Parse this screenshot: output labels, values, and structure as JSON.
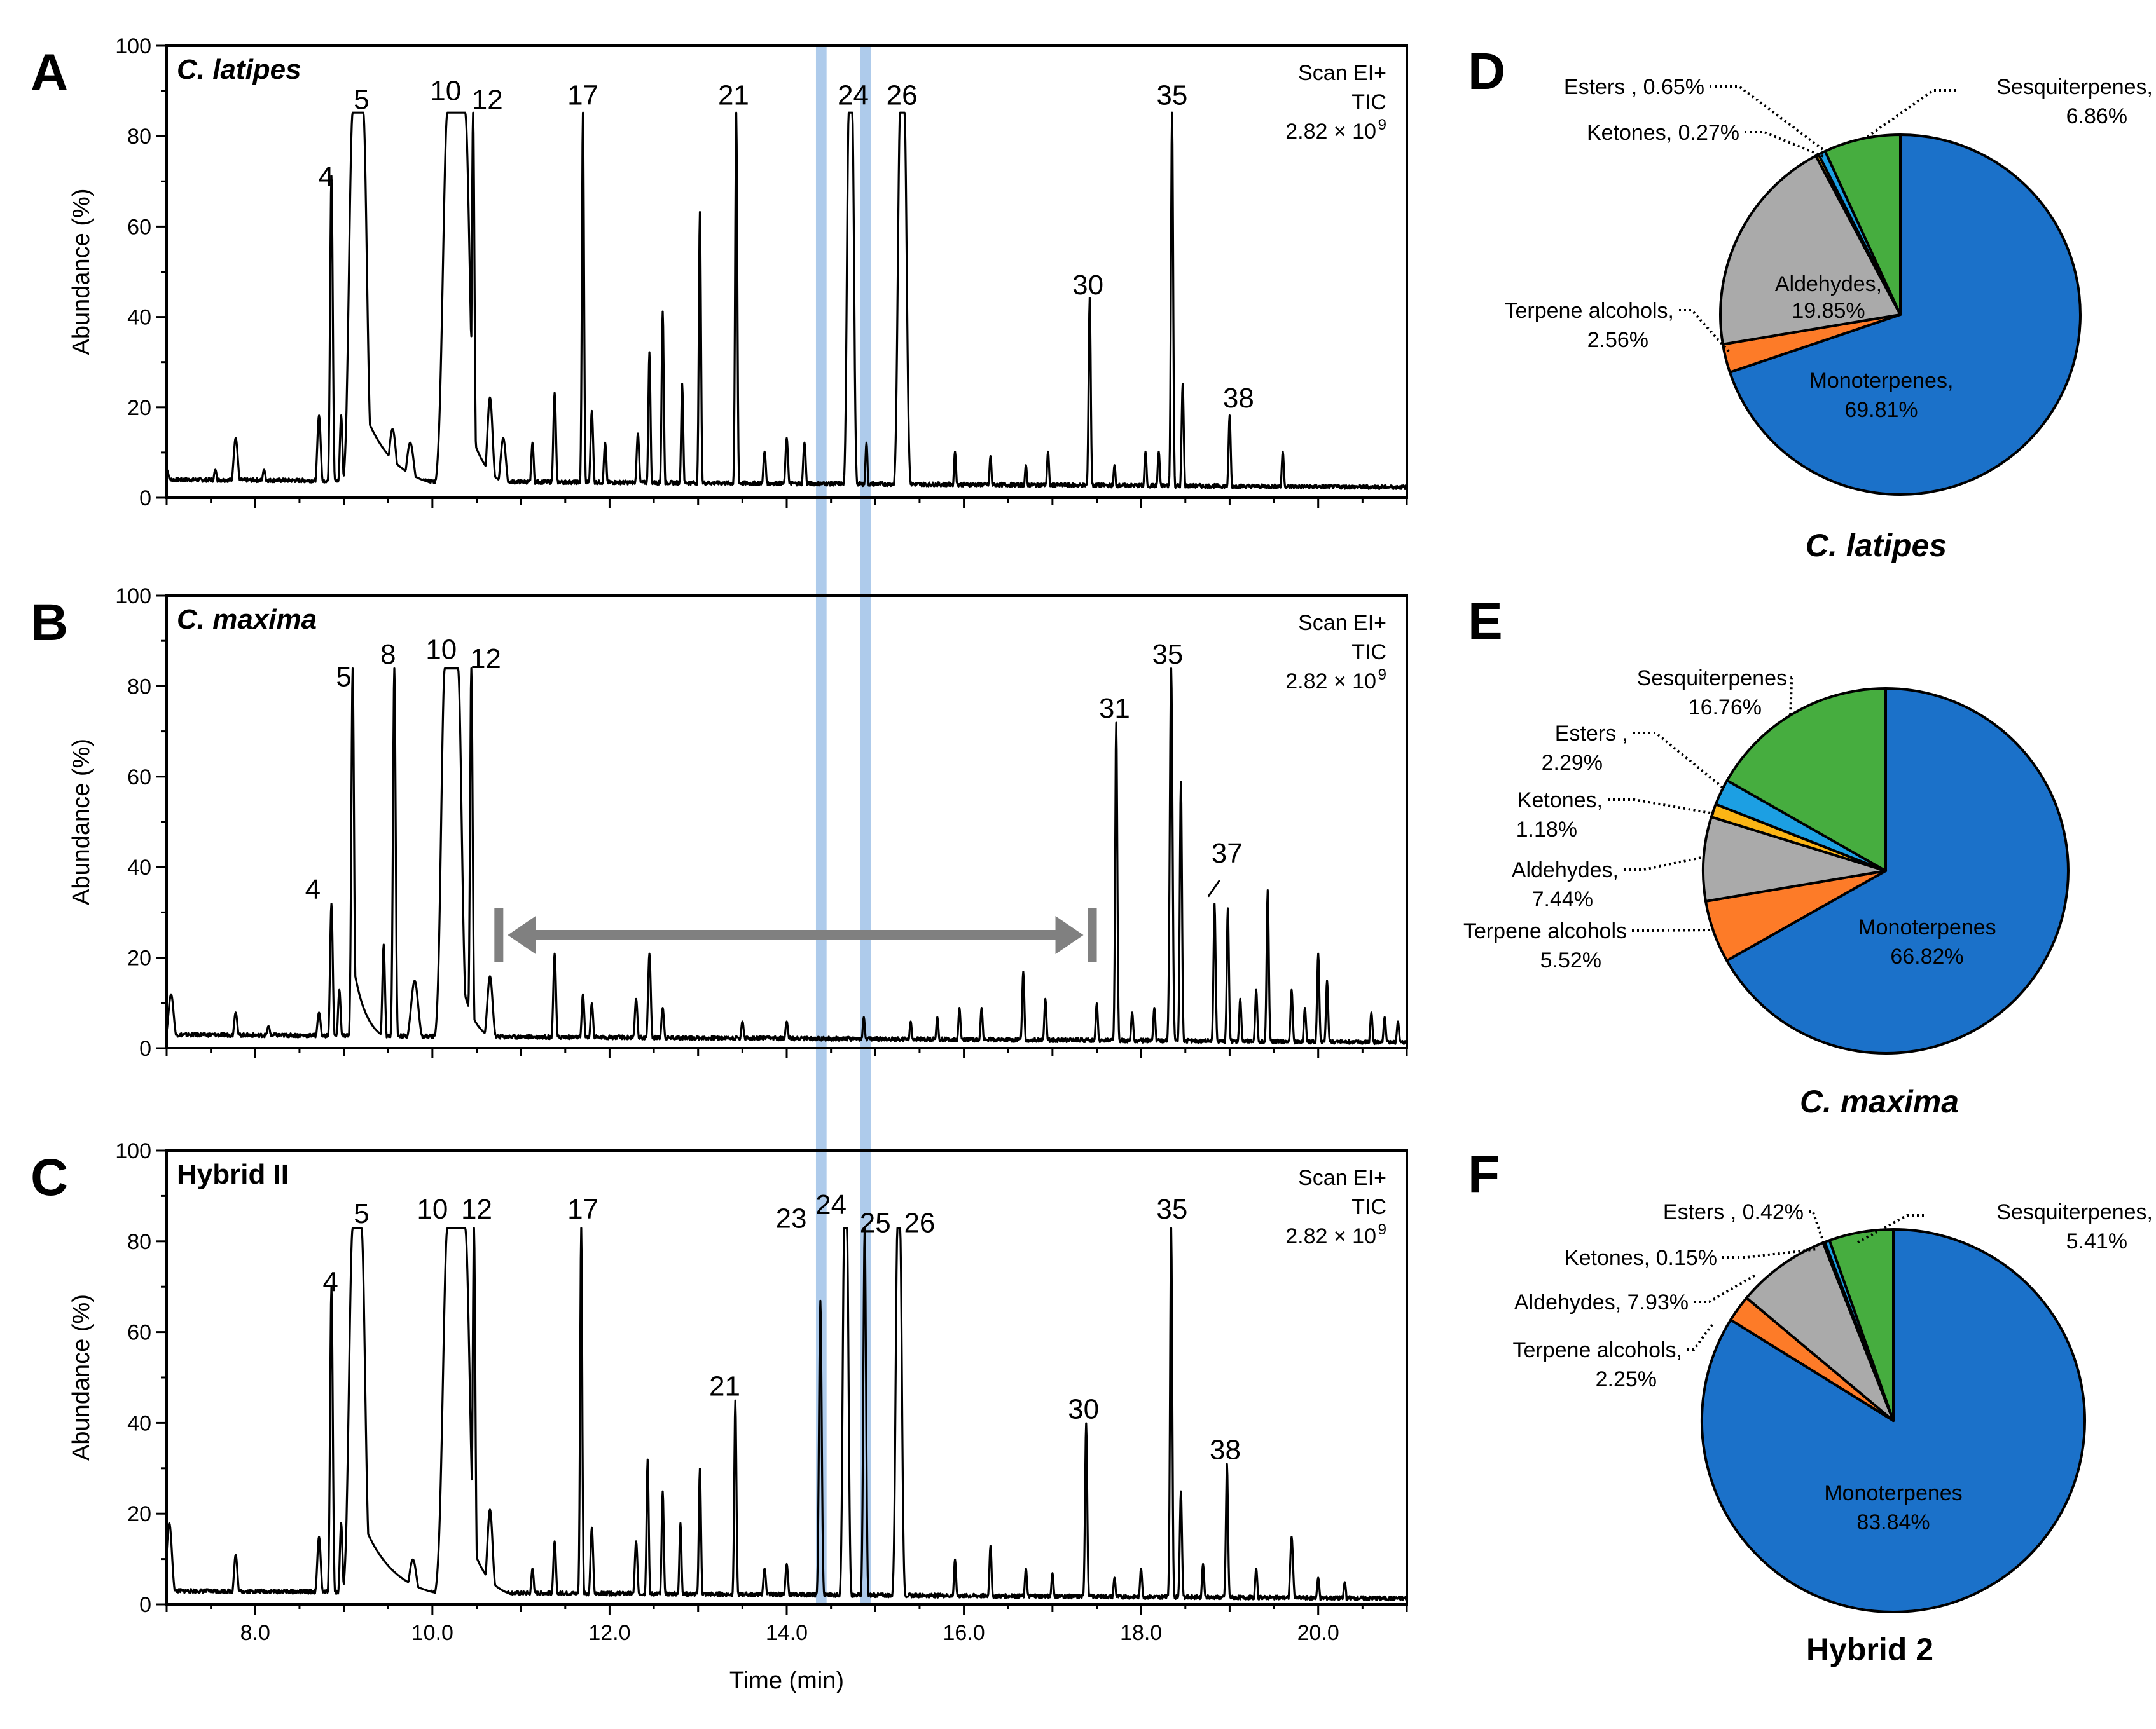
{
  "chart_data": [
    {
      "type": "line",
      "panel": "A",
      "sample": "C. latipes",
      "sample_italic": true,
      "info": [
        "Scan EI+",
        "TIC",
        "2.82 × 10",
        "9"
      ],
      "xlabel": "",
      "ylabel": "Abundance (%)",
      "xlim": [
        7,
        21
      ],
      "ylim": [
        0,
        100
      ],
      "yticks": [
        "0",
        "20",
        "40",
        "60",
        "80",
        "100"
      ],
      "xticks": [],
      "baseline": 4,
      "peaks": [
        {
          "x": 7.0,
          "y": 5,
          "w": 0.03
        },
        {
          "x": 7.55,
          "y": 5,
          "w": 0.02
        },
        {
          "x": 7.78,
          "y": 12,
          "w": 0.025
        },
        {
          "x": 8.1,
          "y": 5,
          "w": 0.02
        },
        {
          "x": 8.72,
          "y": 17,
          "w": 0.02
        },
        {
          "x": 8.86,
          "y": 70,
          "w": 0.015
        },
        {
          "x": 8.97,
          "y": 17,
          "w": 0.015
        },
        {
          "x": 9.1,
          "y": 84,
          "w": 0.04,
          "flat": 0.12,
          "tail": 0.35
        },
        {
          "x": 9.55,
          "y": 14,
          "w": 0.04
        },
        {
          "x": 9.75,
          "y": 11,
          "w": 0.04
        },
        {
          "x": 10.17,
          "y": 84,
          "w": 0.05,
          "flat": 0.2,
          "tail": 0.2
        },
        {
          "x": 10.46,
          "y": 84,
          "w": 0.015
        },
        {
          "x": 10.65,
          "y": 21,
          "w": 0.03
        },
        {
          "x": 10.8,
          "y": 12,
          "w": 0.03
        },
        {
          "x": 11.13,
          "y": 11,
          "w": 0.015
        },
        {
          "x": 11.38,
          "y": 22,
          "w": 0.015
        },
        {
          "x": 11.7,
          "y": 84,
          "w": 0.012
        },
        {
          "x": 11.8,
          "y": 18,
          "w": 0.015
        },
        {
          "x": 11.95,
          "y": 11,
          "w": 0.015
        },
        {
          "x": 12.32,
          "y": 13,
          "w": 0.015
        },
        {
          "x": 12.45,
          "y": 31,
          "w": 0.012
        },
        {
          "x": 12.6,
          "y": 40,
          "w": 0.012
        },
        {
          "x": 12.82,
          "y": 24,
          "w": 0.012
        },
        {
          "x": 13.02,
          "y": 62,
          "w": 0.012
        },
        {
          "x": 13.43,
          "y": 84,
          "w": 0.012
        },
        {
          "x": 13.75,
          "y": 9,
          "w": 0.015
        },
        {
          "x": 14.0,
          "y": 12,
          "w": 0.015
        },
        {
          "x": 14.2,
          "y": 11,
          "w": 0.015
        },
        {
          "x": 14.7,
          "y": 84,
          "w": 0.02,
          "flat": 0.04
        },
        {
          "x": 14.9,
          "y": 11,
          "w": 0.012
        },
        {
          "x": 15.28,
          "y": 84,
          "w": 0.025,
          "flat": 0.05
        },
        {
          "x": 15.9,
          "y": 9,
          "w": 0.012
        },
        {
          "x": 16.3,
          "y": 8,
          "w": 0.012
        },
        {
          "x": 16.7,
          "y": 6,
          "w": 0.012
        },
        {
          "x": 16.95,
          "y": 9,
          "w": 0.012
        },
        {
          "x": 17.42,
          "y": 43,
          "w": 0.012
        },
        {
          "x": 17.7,
          "y": 6,
          "w": 0.012
        },
        {
          "x": 18.05,
          "y": 9,
          "w": 0.012
        },
        {
          "x": 18.2,
          "y": 9,
          "w": 0.012
        },
        {
          "x": 18.35,
          "y": 84,
          "w": 0.012
        },
        {
          "x": 18.47,
          "y": 24,
          "w": 0.012
        },
        {
          "x": 19.0,
          "y": 17,
          "w": 0.012
        },
        {
          "x": 19.6,
          "y": 9,
          "w": 0.012
        }
      ],
      "labels": [
        {
          "text": "4",
          "x": 8.8,
          "y": 69
        },
        {
          "text": "5",
          "x": 9.2,
          "y": 86
        },
        {
          "text": "10",
          "x": 10.15,
          "y": 88
        },
        {
          "text": "12",
          "x": 10.62,
          "y": 86
        },
        {
          "text": "17",
          "x": 11.7,
          "y": 87
        },
        {
          "text": "21",
          "x": 13.4,
          "y": 87
        },
        {
          "text": "24",
          "x": 14.75,
          "y": 87
        },
        {
          "text": "26",
          "x": 15.3,
          "y": 87
        },
        {
          "text": "30",
          "x": 17.4,
          "y": 45
        },
        {
          "text": "35",
          "x": 18.35,
          "y": 87
        },
        {
          "text": "38",
          "x": 19.1,
          "y": 20
        }
      ]
    },
    {
      "type": "line",
      "panel": "B",
      "sample": "C. maxima",
      "sample_italic": true,
      "info": [
        "Scan EI+",
        "TIC",
        "2.82 × 10",
        "9"
      ],
      "xlabel": "",
      "ylabel": "Abundance (%)",
      "xlim": [
        7,
        21
      ],
      "ylim": [
        0,
        100
      ],
      "yticks": [
        "0",
        "20",
        "40",
        "60",
        "80",
        "100"
      ],
      "xticks": [],
      "baseline": 3,
      "peaks": [
        {
          "x": 7.05,
          "y": 11,
          "w": 0.03
        },
        {
          "x": 7.78,
          "y": 7,
          "w": 0.02
        },
        {
          "x": 8.15,
          "y": 4,
          "w": 0.02
        },
        {
          "x": 8.72,
          "y": 7,
          "w": 0.02
        },
        {
          "x": 8.86,
          "y": 31,
          "w": 0.015
        },
        {
          "x": 8.95,
          "y": 12,
          "w": 0.015
        },
        {
          "x": 9.1,
          "y": 83,
          "w": 0.015,
          "tail": 0.15
        },
        {
          "x": 9.45,
          "y": 22,
          "w": 0.015
        },
        {
          "x": 9.57,
          "y": 83,
          "w": 0.015
        },
        {
          "x": 9.8,
          "y": 14,
          "w": 0.04
        },
        {
          "x": 10.14,
          "y": 83,
          "w": 0.04,
          "flat": 0.15,
          "tail": 0.15
        },
        {
          "x": 10.44,
          "y": 83,
          "w": 0.015
        },
        {
          "x": 10.65,
          "y": 15,
          "w": 0.03
        },
        {
          "x": 11.38,
          "y": 20,
          "w": 0.015
        },
        {
          "x": 11.7,
          "y": 11,
          "w": 0.015
        },
        {
          "x": 11.8,
          "y": 9,
          "w": 0.015
        },
        {
          "x": 12.3,
          "y": 10,
          "w": 0.015
        },
        {
          "x": 12.45,
          "y": 20,
          "w": 0.015
        },
        {
          "x": 12.6,
          "y": 8,
          "w": 0.015
        },
        {
          "x": 13.5,
          "y": 5,
          "w": 0.015
        },
        {
          "x": 14.0,
          "y": 5,
          "w": 0.015
        },
        {
          "x": 14.87,
          "y": 6,
          "w": 0.012
        },
        {
          "x": 15.4,
          "y": 5,
          "w": 0.012
        },
        {
          "x": 15.7,
          "y": 6,
          "w": 0.012
        },
        {
          "x": 15.95,
          "y": 8,
          "w": 0.012
        },
        {
          "x": 16.2,
          "y": 8,
          "w": 0.012
        },
        {
          "x": 16.67,
          "y": 16,
          "w": 0.012
        },
        {
          "x": 16.92,
          "y": 10,
          "w": 0.012
        },
        {
          "x": 17.5,
          "y": 9,
          "w": 0.012
        },
        {
          "x": 17.72,
          "y": 71,
          "w": 0.012
        },
        {
          "x": 17.9,
          "y": 7,
          "w": 0.012
        },
        {
          "x": 18.15,
          "y": 8,
          "w": 0.012
        },
        {
          "x": 18.34,
          "y": 83,
          "w": 0.015
        },
        {
          "x": 18.45,
          "y": 58,
          "w": 0.012
        },
        {
          "x": 18.83,
          "y": 31,
          "w": 0.012
        },
        {
          "x": 18.98,
          "y": 30,
          "w": 0.012
        },
        {
          "x": 19.12,
          "y": 10,
          "w": 0.012
        },
        {
          "x": 19.3,
          "y": 12,
          "w": 0.012
        },
        {
          "x": 19.43,
          "y": 34,
          "w": 0.012
        },
        {
          "x": 19.7,
          "y": 12,
          "w": 0.012
        },
        {
          "x": 19.85,
          "y": 8,
          "w": 0.012
        },
        {
          "x": 20.0,
          "y": 20,
          "w": 0.012
        },
        {
          "x": 20.1,
          "y": 14,
          "w": 0.012
        },
        {
          "x": 20.6,
          "y": 7,
          "w": 0.012
        },
        {
          "x": 20.75,
          "y": 6,
          "w": 0.012
        },
        {
          "x": 20.9,
          "y": 5,
          "w": 0.012
        }
      ],
      "labels": [
        {
          "text": "4",
          "x": 8.65,
          "y": 33
        },
        {
          "text": "5",
          "x": 9.0,
          "y": 80
        },
        {
          "text": "8",
          "x": 9.5,
          "y": 85
        },
        {
          "text": "10",
          "x": 10.1,
          "y": 86
        },
        {
          "text": "12",
          "x": 10.6,
          "y": 84
        },
        {
          "text": "31",
          "x": 17.7,
          "y": 73
        },
        {
          "text": "35",
          "x": 18.3,
          "y": 85
        },
        {
          "text": "37",
          "x": 18.97,
          "y": 41
        }
      ],
      "annotations": [
        {
          "type": "range-arrow",
          "x1": 10.75,
          "x2": 17.45,
          "y": 25
        }
      ]
    },
    {
      "type": "line",
      "panel": "C",
      "sample": "Hybrid II",
      "sample_italic": false,
      "info": [
        "Scan EI+",
        "TIC",
        "2.82 × 10",
        "9"
      ],
      "xlabel": "Time (min)",
      "ylabel": "Abundance (%)",
      "xlim": [
        7,
        21
      ],
      "ylim": [
        0,
        100
      ],
      "yticks": [
        "0",
        "20",
        "40",
        "60",
        "80",
        "100"
      ],
      "xticks": [
        "8.0",
        "10.0",
        "12.0",
        "14.0",
        "16.0",
        "18.0",
        "20.0"
      ],
      "baseline": 3,
      "peaks": [
        {
          "x": 7.03,
          "y": 17,
          "w": 0.03
        },
        {
          "x": 7.78,
          "y": 10,
          "w": 0.02
        },
        {
          "x": 8.72,
          "y": 14,
          "w": 0.02
        },
        {
          "x": 8.86,
          "y": 69,
          "w": 0.015
        },
        {
          "x": 8.97,
          "y": 17,
          "w": 0.015
        },
        {
          "x": 9.1,
          "y": 82,
          "w": 0.04,
          "flat": 0.1,
          "tail": 0.35
        },
        {
          "x": 9.78,
          "y": 9,
          "w": 0.04
        },
        {
          "x": 10.17,
          "y": 82,
          "w": 0.05,
          "flat": 0.2,
          "tail": 0.2
        },
        {
          "x": 10.47,
          "y": 82,
          "w": 0.015
        },
        {
          "x": 10.65,
          "y": 20,
          "w": 0.03
        },
        {
          "x": 11.13,
          "y": 7,
          "w": 0.015
        },
        {
          "x": 11.38,
          "y": 13,
          "w": 0.015
        },
        {
          "x": 11.68,
          "y": 82,
          "w": 0.012
        },
        {
          "x": 11.8,
          "y": 16,
          "w": 0.015
        },
        {
          "x": 12.3,
          "y": 13,
          "w": 0.015
        },
        {
          "x": 12.43,
          "y": 31,
          "w": 0.012
        },
        {
          "x": 12.6,
          "y": 24,
          "w": 0.012
        },
        {
          "x": 12.8,
          "y": 17,
          "w": 0.012
        },
        {
          "x": 13.02,
          "y": 29,
          "w": 0.012
        },
        {
          "x": 13.42,
          "y": 44,
          "w": 0.012
        },
        {
          "x": 13.75,
          "y": 7,
          "w": 0.015
        },
        {
          "x": 14.0,
          "y": 8,
          "w": 0.015
        },
        {
          "x": 14.38,
          "y": 66,
          "w": 0.015
        },
        {
          "x": 14.65,
          "y": 82,
          "w": 0.018,
          "flat": 0.03
        },
        {
          "x": 14.88,
          "y": 82,
          "w": 0.015
        },
        {
          "x": 15.25,
          "y": 82,
          "w": 0.02,
          "flat": 0.03
        },
        {
          "x": 15.9,
          "y": 9,
          "w": 0.012
        },
        {
          "x": 16.3,
          "y": 12,
          "w": 0.012
        },
        {
          "x": 16.7,
          "y": 7,
          "w": 0.012
        },
        {
          "x": 17.0,
          "y": 6,
          "w": 0.012
        },
        {
          "x": 17.38,
          "y": 39,
          "w": 0.012
        },
        {
          "x": 17.7,
          "y": 5,
          "w": 0.012
        },
        {
          "x": 18.0,
          "y": 7,
          "w": 0.012
        },
        {
          "x": 18.34,
          "y": 82,
          "w": 0.012
        },
        {
          "x": 18.45,
          "y": 24,
          "w": 0.012
        },
        {
          "x": 18.7,
          "y": 8,
          "w": 0.012
        },
        {
          "x": 18.97,
          "y": 30,
          "w": 0.012
        },
        {
          "x": 19.3,
          "y": 7,
          "w": 0.012
        },
        {
          "x": 19.7,
          "y": 14,
          "w": 0.015
        },
        {
          "x": 20.0,
          "y": 5,
          "w": 0.012
        },
        {
          "x": 20.3,
          "y": 4,
          "w": 0.012
        }
      ],
      "labels": [
        {
          "text": "4",
          "x": 8.85,
          "y": 69
        },
        {
          "text": "5",
          "x": 9.2,
          "y": 84
        },
        {
          "text": "10",
          "x": 10.0,
          "y": 85
        },
        {
          "text": "12",
          "x": 10.5,
          "y": 85
        },
        {
          "text": "17",
          "x": 11.7,
          "y": 85
        },
        {
          "text": "21",
          "x": 13.3,
          "y": 46
        },
        {
          "text": "23",
          "x": 14.05,
          "y": 83
        },
        {
          "text": "24",
          "x": 14.5,
          "y": 86
        },
        {
          "text": "25",
          "x": 15.0,
          "y": 82
        },
        {
          "text": "26",
          "x": 15.5,
          "y": 82
        },
        {
          "text": "30",
          "x": 17.35,
          "y": 41
        },
        {
          "text": "35",
          "x": 18.35,
          "y": 85
        },
        {
          "text": "38",
          "x": 18.95,
          "y": 32
        }
      ]
    },
    {
      "type": "pie",
      "panel": "D",
      "title": "C. latipes",
      "title_italic": true,
      "slices": [
        {
          "label": "Monoterpenes",
          "value": 69.81,
          "color": "#1b71c9",
          "text": [
            "Monoterpenes,",
            "69.81%"
          ]
        },
        {
          "label": "Terpene alcohols",
          "value": 2.56,
          "color": "#fd7b28",
          "text": [
            "Terpene alcohols,",
            "2.56%"
          ]
        },
        {
          "label": "Aldehydes",
          "value": 19.85,
          "color": "#aaaaaa",
          "text": [
            "Aldehydes,",
            "19.85%"
          ]
        },
        {
          "label": "Ketones",
          "value": 0.27,
          "color": "#fbb515",
          "text": [
            "Ketones, 0.27%"
          ]
        },
        {
          "label": "Esters",
          "value": 0.65,
          "color": "#1c9fe3",
          "text": [
            "Esters , 0.65%"
          ]
        },
        {
          "label": "Sesquiterpenes",
          "value": 6.86,
          "color": "#46ad3f",
          "text": [
            "Sesquiterpenes,",
            "6.86%"
          ]
        }
      ]
    },
    {
      "type": "pie",
      "panel": "E",
      "title": "C. maxima",
      "title_italic": true,
      "slices": [
        {
          "label": "Monoterpenes",
          "value": 66.82,
          "color": "#1b71c9",
          "text": [
            "Monoterpenes",
            "66.82%"
          ]
        },
        {
          "label": "Terpene alcohols",
          "value": 5.52,
          "color": "#fd7b28",
          "text": [
            "Terpene alcohols",
            "5.52%"
          ]
        },
        {
          "label": "Aldehydes",
          "value": 7.44,
          "color": "#aaaaaa",
          "text": [
            "Aldehydes,",
            "7.44%"
          ]
        },
        {
          "label": "Ketones",
          "value": 1.18,
          "color": "#fbb515",
          "text": [
            "Ketones,",
            "1.18%"
          ]
        },
        {
          "label": "Esters",
          "value": 2.29,
          "color": "#1c9fe3",
          "text": [
            "Esters ,",
            "2.29%"
          ]
        },
        {
          "label": "Sesquiterpenes",
          "value": 16.76,
          "color": "#46ad3f",
          "text": [
            "Sesquiterpenes",
            "16.76%"
          ]
        }
      ]
    },
    {
      "type": "pie",
      "panel": "F",
      "title": "Hybrid 2",
      "title_italic": false,
      "slices": [
        {
          "label": "Monoterpenes",
          "value": 83.84,
          "color": "#1b71c9",
          "text": [
            "Monoterpenes",
            "83.84%"
          ]
        },
        {
          "label": "Terpene alcohols",
          "value": 2.25,
          "color": "#fd7b28",
          "text": [
            "Terpene alcohols,",
            "2.25%"
          ]
        },
        {
          "label": "Aldehydes",
          "value": 7.93,
          "color": "#aaaaaa",
          "text": [
            "Aldehydes, 7.93%"
          ]
        },
        {
          "label": "Ketones",
          "value": 0.15,
          "color": "#fbb515",
          "text": [
            "Ketones, 0.15%"
          ]
        },
        {
          "label": "Esters",
          "value": 0.42,
          "color": "#1c9fe3",
          "text": [
            "Esters , 0.42%"
          ]
        },
        {
          "label": "Sesquiterpenes",
          "value": 5.41,
          "color": "#46ad3f",
          "text": [
            "Sesquiterpenes,",
            "5.41%"
          ]
        }
      ]
    }
  ],
  "highlight_bands": [
    {
      "from": 14.33,
      "to": 14.45,
      "color": "#aecbeb"
    },
    {
      "from": 14.83,
      "to": 14.95,
      "color": "#aecbeb"
    }
  ]
}
